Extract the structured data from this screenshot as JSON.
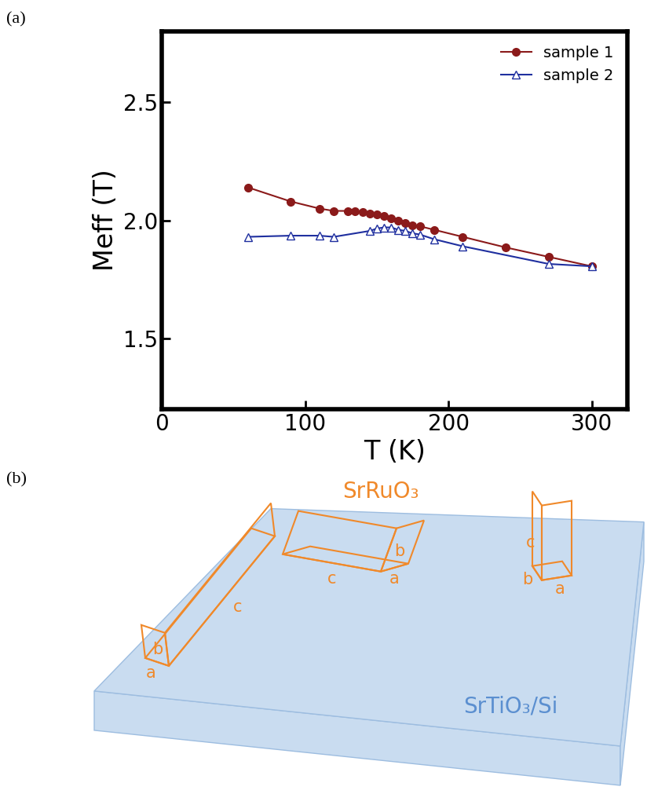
{
  "panel_labels": [
    "(a)",
    "(b)"
  ],
  "chart_data": {
    "type": "line",
    "x_label": "T (K)",
    "y_label": "Meff (T)",
    "xlim": [
      0,
      325
    ],
    "xticks": [
      0,
      100,
      200,
      300
    ],
    "ylim": [
      1.2,
      2.8
    ],
    "yticks": [
      1.5,
      2.0,
      2.5
    ],
    "legend": "upper right",
    "series": [
      {
        "name": "sample 1",
        "color": "#8b1a1a",
        "marker": "o",
        "fill": "full",
        "x": [
          60,
          90,
          110,
          120,
          130,
          135,
          140,
          145,
          150,
          155,
          160,
          165,
          170,
          175,
          180,
          190,
          210,
          240,
          270,
          300
        ],
        "values": [
          2.14,
          2.08,
          2.05,
          2.04,
          2.04,
          2.04,
          2.035,
          2.03,
          2.025,
          2.02,
          2.01,
          2.0,
          1.99,
          1.98,
          1.975,
          1.96,
          1.93,
          1.885,
          1.845,
          1.805
        ]
      },
      {
        "name": "sample 2",
        "color": "#1f2f9f",
        "marker": "^",
        "fill": "none",
        "x": [
          60,
          90,
          110,
          120,
          145,
          150,
          155,
          160,
          165,
          170,
          175,
          180,
          190,
          210,
          270,
          300
        ],
        "values": [
          1.93,
          1.935,
          1.935,
          1.93,
          1.955,
          1.965,
          1.97,
          1.97,
          1.96,
          1.955,
          1.945,
          1.94,
          1.92,
          1.89,
          1.815,
          1.805
        ]
      }
    ]
  },
  "diagram": {
    "film": "SrRuO₃",
    "substrate": "SrTiO₃/Si",
    "crystals": [
      [
        "a",
        "b",
        "c"
      ],
      [
        "a",
        "b",
        "c"
      ],
      [
        "a",
        "b",
        "c"
      ]
    ]
  }
}
